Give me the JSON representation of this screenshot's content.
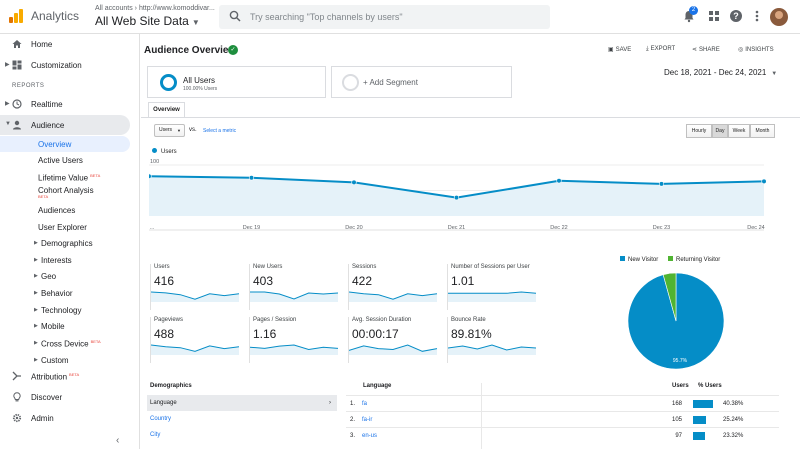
{
  "topbar": {
    "app_name": "Analytics",
    "accounts_path": "All accounts › http://www.komoddivar...",
    "property_name": "All Web Site Data",
    "search_placeholder": "Try searching \"Top channels by users\"",
    "notification_count": "2",
    "icons": [
      "analytics-logo",
      "search-icon",
      "bell-icon",
      "apps-grid-icon",
      "help-icon",
      "more-vert-icon",
      "avatar"
    ]
  },
  "sidebar": {
    "home": "Home",
    "customization": "Customization",
    "reports_header": "REPORTS",
    "realtime": "Realtime",
    "audience": "Audience",
    "audience_items": [
      {
        "label": "Overview"
      },
      {
        "label": "Active Users"
      },
      {
        "label": "Lifetime Value",
        "beta": "BETA"
      },
      {
        "label": "Cohort Analysis",
        "beta": "BETA"
      },
      {
        "label": "Audiences"
      },
      {
        "label": "User Explorer"
      },
      {
        "label": "Demographics"
      },
      {
        "label": "Interests"
      },
      {
        "label": "Geo"
      },
      {
        "label": "Behavior"
      },
      {
        "label": "Technology"
      },
      {
        "label": "Mobile"
      },
      {
        "label": "Cross Device",
        "beta": "BETA"
      },
      {
        "label": "Custom"
      }
    ],
    "attribution": "Attribution",
    "attribution_beta": "BETA",
    "discover": "Discover",
    "admin": "Admin"
  },
  "header": {
    "title": "Audience Overview",
    "save": "SAVE",
    "export": "EXPORT",
    "share": "SHARE",
    "insights": "INSIGHTS"
  },
  "segments": {
    "all_users": "All Users",
    "all_users_pct": "100.00% Users",
    "add_segment": "+ Add Segment"
  },
  "date_range": "Dec 18, 2021 - Dec 24, 2021",
  "tabs": {
    "overview": "Overview"
  },
  "controls": {
    "metric_select": "Users",
    "vs": "vs.",
    "select_metric": "Select a metric",
    "granularity": [
      "Hourly",
      "Day",
      "Week",
      "Month"
    ],
    "active_granularity": "Day"
  },
  "chart_data": {
    "type": "area",
    "title": "",
    "series": [
      {
        "name": "Users",
        "values": [
          78,
          75,
          66,
          36,
          69,
          63,
          68
        ]
      }
    ],
    "x": [
      "Dec 18",
      "Dec 19",
      "Dec 20",
      "Dec 21",
      "Dec 22",
      "Dec 23",
      "Dec 24"
    ],
    "x_tick_labels": [
      "...",
      "Dec 19",
      "Dec 20",
      "Dec 21",
      "Dec 22",
      "Dec 23",
      "Dec 24"
    ],
    "y_ticks": [
      "100",
      "50"
    ],
    "ylim": [
      0,
      100
    ],
    "color": "#058dc7",
    "grid": true
  },
  "metrics": [
    {
      "label": "Users",
      "value": "416",
      "spark": [
        10,
        9,
        7,
        2,
        8,
        6,
        8
      ]
    },
    {
      "label": "New Users",
      "value": "403",
      "spark": [
        9,
        9,
        7,
        2,
        8,
        7,
        8
      ]
    },
    {
      "label": "Sessions",
      "value": "422",
      "spark": [
        10,
        8,
        7,
        2,
        8,
        6,
        8
      ]
    },
    {
      "label": "Number of Sessions per User",
      "value": "1.01",
      "spark": [
        6,
        6,
        6,
        6,
        6,
        7,
        6
      ]
    },
    {
      "label": "Pageviews",
      "value": "488",
      "spark": [
        10,
        8,
        7,
        3,
        9,
        6,
        8
      ]
    },
    {
      "label": "Pages / Session",
      "value": "1.16",
      "spark": [
        6,
        5,
        7,
        8,
        4,
        6,
        5
      ]
    },
    {
      "label": "Avg. Session Duration",
      "value": "00:00:17",
      "spark": [
        4,
        9,
        6,
        5,
        10,
        3,
        6
      ]
    },
    {
      "label": "Bounce Rate",
      "value": "89.81%",
      "spark": [
        6,
        8,
        5,
        9,
        4,
        7,
        6
      ]
    }
  ],
  "pie": {
    "legend": [
      {
        "name": "New Visitor",
        "color": "#058dc7"
      },
      {
        "name": "Returning Visitor",
        "color": "#50b432"
      }
    ],
    "values": [
      95.7,
      4.3
    ],
    "label": "95.7%"
  },
  "demographics": {
    "header": "Demographics",
    "items": [
      "Language",
      "Country",
      "City"
    ],
    "selected": "Language"
  },
  "language_table": {
    "col_language": "Language",
    "col_users": "Users",
    "col_pct": "% Users",
    "rows": [
      {
        "num": "1.",
        "name": "fa",
        "users": "168",
        "pct": "40.38%",
        "share": 40.38
      },
      {
        "num": "2.",
        "name": "fa-ir",
        "users": "105",
        "pct": "25.24%",
        "share": 25.24
      },
      {
        "num": "3.",
        "name": "en-us",
        "users": "97",
        "pct": "23.32%",
        "share": 23.32
      }
    ]
  }
}
